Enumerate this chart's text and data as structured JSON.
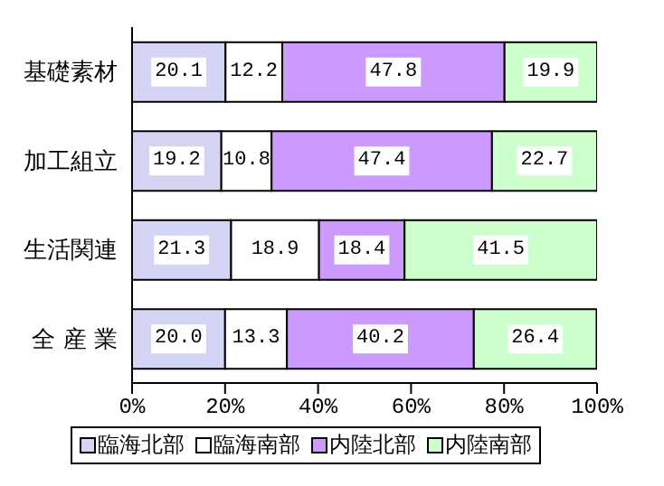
{
  "chart_data": {
    "type": "bar",
    "orientation": "horizontal",
    "stacked": true,
    "categories": [
      "基礎素材",
      "加工組立",
      "生活関連",
      "全 産 業"
    ],
    "series": [
      {
        "name": "臨海北部",
        "color": "#d4d4f4",
        "values": [
          20.1,
          19.2,
          21.3,
          20.0
        ],
        "value_labels": [
          "20.1",
          "19.2",
          "21.3",
          "20.0"
        ]
      },
      {
        "name": "臨海南部",
        "color": "#ffffff",
        "values": [
          12.2,
          10.8,
          18.9,
          13.3
        ],
        "value_labels": [
          "12.2",
          "10.8",
          "18.9",
          "13.3"
        ]
      },
      {
        "name": "内陸北部",
        "color": "#cc99ff",
        "values": [
          47.8,
          47.4,
          18.4,
          40.2
        ],
        "value_labels": [
          "47.8",
          "47.4",
          "18.4",
          "40.2"
        ]
      },
      {
        "name": "内陸南部",
        "color": "#ccffcc",
        "values": [
          19.9,
          22.7,
          41.5,
          26.4
        ],
        "value_labels": [
          "19.9",
          "22.7",
          "41.5",
          "26.4"
        ]
      }
    ],
    "xlim": [
      0,
      100
    ],
    "xticks": [
      {
        "value": 0,
        "label": "0%"
      },
      {
        "value": 20,
        "label": "20%"
      },
      {
        "value": 40,
        "label": "40%"
      },
      {
        "value": 60,
        "label": "60%"
      },
      {
        "value": 80,
        "label": "80%"
      },
      {
        "value": 100,
        "label": "100%"
      }
    ],
    "legend": "bottom",
    "grid": false
  }
}
